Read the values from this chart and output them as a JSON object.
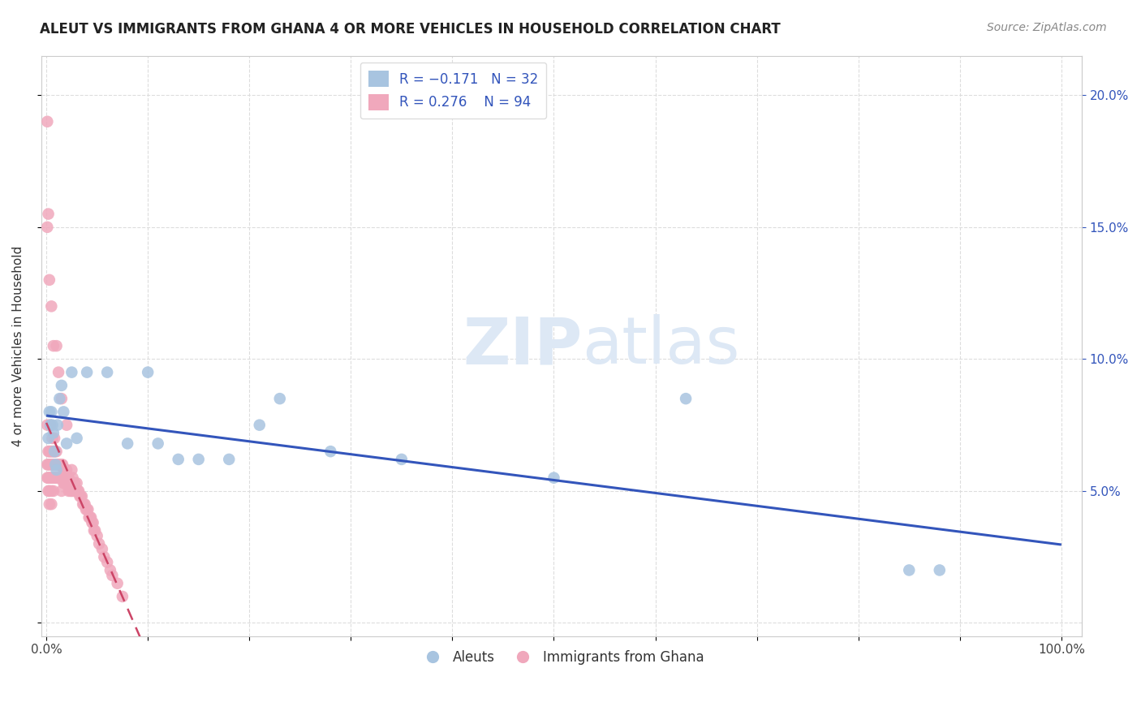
{
  "title": "ALEUT VS IMMIGRANTS FROM GHANA 4 OR MORE VEHICLES IN HOUSEHOLD CORRELATION CHART",
  "source": "Source: ZipAtlas.com",
  "ylabel": "4 or more Vehicles in Household",
  "right_yticks": [
    "5.0%",
    "10.0%",
    "15.0%",
    "20.0%"
  ],
  "right_ytick_vals": [
    0.05,
    0.1,
    0.15,
    0.2
  ],
  "R_aleut": -0.171,
  "N_aleut": 32,
  "R_ghana": 0.276,
  "N_ghana": 94,
  "aleut_color": "#a8c4e0",
  "ghana_color": "#f0a8bc",
  "trendline_aleut_color": "#3355bb",
  "trendline_ghana_color": "#cc4466",
  "background_color": "#ffffff",
  "watermark_color": "#dde8f5",
  "aleut_x": [
    0.002,
    0.003,
    0.004,
    0.005,
    0.006,
    0.007,
    0.008,
    0.009,
    0.01,
    0.011,
    0.013,
    0.015,
    0.017,
    0.02,
    0.025,
    0.03,
    0.04,
    0.06,
    0.08,
    0.1,
    0.11,
    0.13,
    0.15,
    0.18,
    0.21,
    0.23,
    0.28,
    0.35,
    0.5,
    0.63,
    0.85,
    0.88
  ],
  "aleut_y": [
    0.07,
    0.08,
    0.075,
    0.08,
    0.075,
    0.072,
    0.065,
    0.06,
    0.058,
    0.075,
    0.085,
    0.09,
    0.08,
    0.068,
    0.095,
    0.07,
    0.095,
    0.095,
    0.068,
    0.095,
    0.068,
    0.062,
    0.062,
    0.062,
    0.075,
    0.085,
    0.065,
    0.062,
    0.055,
    0.085,
    0.02,
    0.02
  ],
  "ghana_x": [
    0.001,
    0.001,
    0.001,
    0.002,
    0.002,
    0.002,
    0.002,
    0.003,
    0.003,
    0.003,
    0.003,
    0.003,
    0.004,
    0.004,
    0.004,
    0.005,
    0.005,
    0.005,
    0.005,
    0.005,
    0.006,
    0.006,
    0.006,
    0.006,
    0.007,
    0.007,
    0.007,
    0.007,
    0.008,
    0.008,
    0.008,
    0.009,
    0.009,
    0.01,
    0.01,
    0.01,
    0.011,
    0.011,
    0.012,
    0.012,
    0.013,
    0.013,
    0.014,
    0.014,
    0.015,
    0.015,
    0.015,
    0.016,
    0.017,
    0.017,
    0.018,
    0.018,
    0.019,
    0.02,
    0.02,
    0.021,
    0.022,
    0.022,
    0.023,
    0.024,
    0.025,
    0.025,
    0.026,
    0.027,
    0.028,
    0.029,
    0.03,
    0.031,
    0.032,
    0.033,
    0.034,
    0.035,
    0.036,
    0.037,
    0.038,
    0.039,
    0.04,
    0.041,
    0.042,
    0.043,
    0.044,
    0.045,
    0.046,
    0.047,
    0.048,
    0.05,
    0.052,
    0.055,
    0.057,
    0.06,
    0.063,
    0.065,
    0.07,
    0.075
  ],
  "ghana_y": [
    0.075,
    0.06,
    0.055,
    0.065,
    0.06,
    0.055,
    0.05,
    0.065,
    0.06,
    0.055,
    0.05,
    0.045,
    0.075,
    0.065,
    0.055,
    0.065,
    0.06,
    0.055,
    0.05,
    0.045,
    0.07,
    0.065,
    0.06,
    0.055,
    0.065,
    0.06,
    0.055,
    0.05,
    0.07,
    0.065,
    0.055,
    0.065,
    0.055,
    0.065,
    0.06,
    0.055,
    0.06,
    0.055,
    0.06,
    0.055,
    0.06,
    0.055,
    0.06,
    0.055,
    0.06,
    0.055,
    0.05,
    0.06,
    0.058,
    0.053,
    0.058,
    0.053,
    0.058,
    0.058,
    0.053,
    0.055,
    0.055,
    0.05,
    0.053,
    0.05,
    0.058,
    0.05,
    0.055,
    0.05,
    0.053,
    0.05,
    0.053,
    0.05,
    0.05,
    0.048,
    0.048,
    0.048,
    0.045,
    0.045,
    0.045,
    0.043,
    0.043,
    0.043,
    0.04,
    0.04,
    0.04,
    0.038,
    0.038,
    0.035,
    0.035,
    0.033,
    0.03,
    0.028,
    0.025,
    0.023,
    0.02,
    0.018,
    0.015,
    0.01
  ],
  "ghana_high_x": [
    0.001,
    0.001,
    0.002,
    0.003,
    0.005,
    0.007,
    0.01,
    0.012,
    0.015,
    0.02
  ],
  "ghana_high_y": [
    0.19,
    0.15,
    0.155,
    0.13,
    0.12,
    0.105,
    0.105,
    0.095,
    0.085,
    0.075
  ],
  "xlim": [
    -0.005,
    1.02
  ],
  "ylim": [
    -0.005,
    0.215
  ]
}
